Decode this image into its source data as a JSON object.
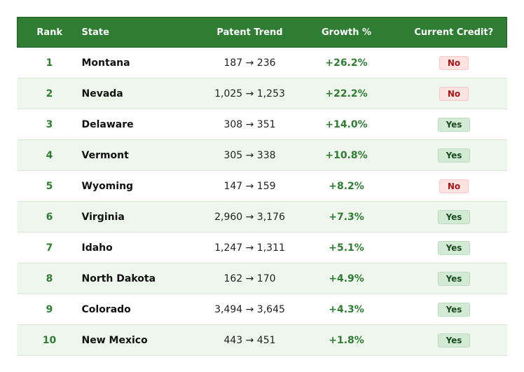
{
  "table": {
    "headers": {
      "rank": "Rank",
      "state": "State",
      "trend": "Patent Trend",
      "growth": "Growth %",
      "credit": "Current Credit?"
    },
    "rows": [
      {
        "rank": "1",
        "state": "Montana",
        "trend": "187 → 236",
        "growth": "+26.2%",
        "credit": "No"
      },
      {
        "rank": "2",
        "state": "Nevada",
        "trend": "1,025 → 1,253",
        "growth": "+22.2%",
        "credit": "No"
      },
      {
        "rank": "3",
        "state": "Delaware",
        "trend": "308 → 351",
        "growth": "+14.0%",
        "credit": "Yes"
      },
      {
        "rank": "4",
        "state": "Vermont",
        "trend": "305 → 338",
        "growth": "+10.8%",
        "credit": "Yes"
      },
      {
        "rank": "5",
        "state": "Wyoming",
        "trend": "147 → 159",
        "growth": "+8.2%",
        "credit": "No"
      },
      {
        "rank": "6",
        "state": "Virginia",
        "trend": "2,960 → 3,176",
        "growth": "+7.3%",
        "credit": "Yes"
      },
      {
        "rank": "7",
        "state": "Idaho",
        "trend": "1,247 → 1,311",
        "growth": "+5.1%",
        "credit": "Yes"
      },
      {
        "rank": "8",
        "state": "North Dakota",
        "trend": "162 → 170",
        "growth": "+4.9%",
        "credit": "Yes"
      },
      {
        "rank": "9",
        "state": "Colorado",
        "trend": "3,494 → 3,645",
        "growth": "+4.3%",
        "credit": "Yes"
      },
      {
        "rank": "10",
        "state": "New Mexico",
        "trend": "443 → 451",
        "growth": "+1.8%",
        "credit": "Yes"
      }
    ]
  },
  "colors": {
    "header_bg": "#2e7d32",
    "accent_green": "#2e7d32",
    "row_alt_bg": "#eef6ee",
    "badge_no_bg": "#fde2e2",
    "badge_no_text": "#a31515",
    "badge_yes_bg": "#d3ead5",
    "badge_yes_text": "#1b4d1e"
  }
}
